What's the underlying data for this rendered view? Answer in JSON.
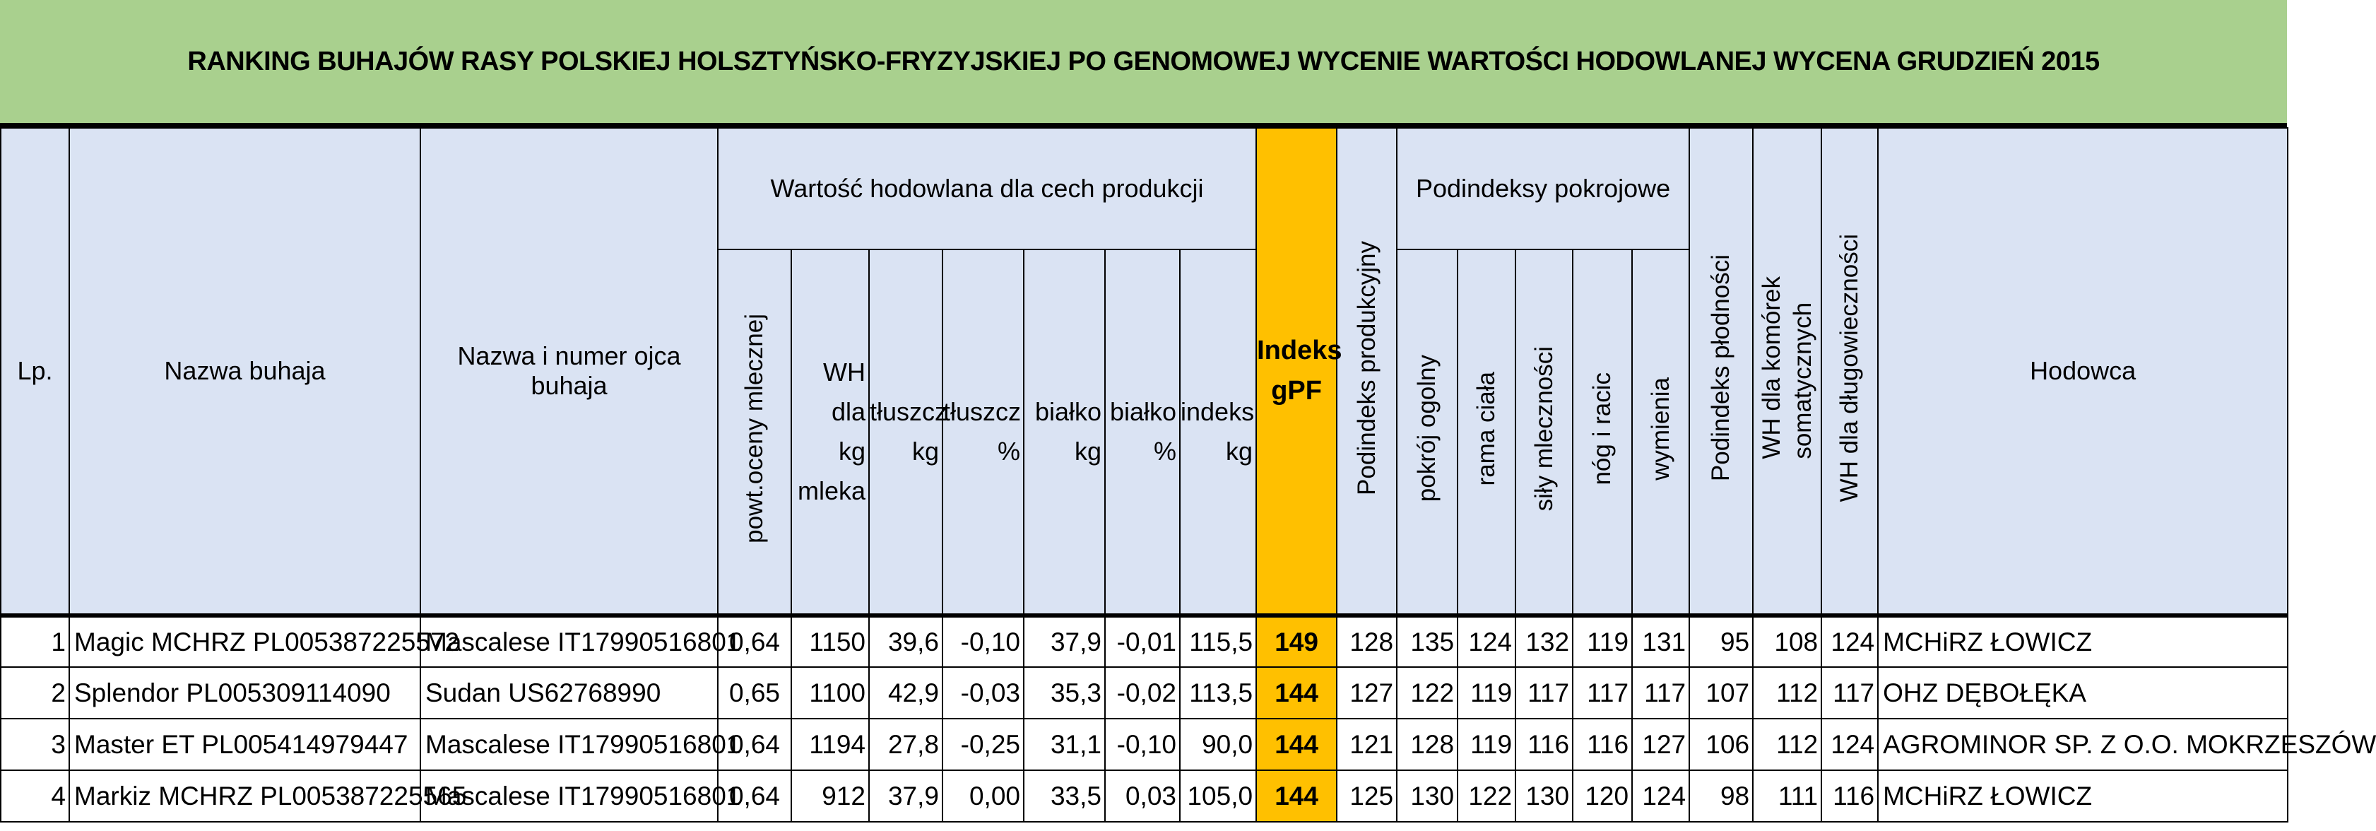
{
  "title": "RANKING BUHAJÓW RASY POLSKIEJ HOLSZTYŃSKO-FRYZYJSKIEJ PO GENOMOWEJ WYCENIE WARTOŚCI HODOWLANEJ  WYCENA GRUDZIEŃ 2015",
  "headers": {
    "lp": "Lp.",
    "nazwa": "Nazwa buhaja",
    "ojciec": "Nazwa i numer ojca buhaja",
    "group_production": "Wartość hodowlana dla cech produkcji",
    "powt": "powt.oceny mlecznej",
    "wh_mleko": [
      "WH dla",
      "kg",
      "mleka"
    ],
    "tluszcz_kg": [
      "tłuszcz",
      "kg"
    ],
    "tluszcz_pct": [
      "tłuszcz",
      "%"
    ],
    "bialko_kg": [
      "białko",
      "kg"
    ],
    "bialko_pct": [
      "białko",
      "%"
    ],
    "indeks_kg": [
      "indeks",
      "kg"
    ],
    "gpf": [
      "Indeks",
      "gPF"
    ],
    "podindeks_produkcyjny": "Podindeks produkcyjny",
    "group_pokrojowe": "Podindeksy pokrojowe",
    "pokroj": "pokrój ogolny",
    "rama": "rama ciała",
    "sily": "siły mleczności",
    "nog": "nóg i racic",
    "wymienia": "wymienia",
    "plodnosci": "Podindeks płodności",
    "komorek": [
      "WH dla komórek",
      "somatycznych"
    ],
    "dlugowiecznosci": "WH dla długowieczności",
    "hodowca": "Hodowca"
  },
  "rows": [
    {
      "lp": "1",
      "nazwa": "Magic MCHRZ PL005387225572",
      "ojciec": "Mascalese IT17990516801",
      "powt": "0,64",
      "mleko": "1150",
      "tl_kg": "39,6",
      "tl_pct": "-0,10",
      "bi_kg": "37,9",
      "bi_pct": "-0,01",
      "indeks_kg": "115,5",
      "gpf": "149",
      "prod": "128",
      "pokroj": "135",
      "rama": "124",
      "sily": "132",
      "nog": "119",
      "wym": "131",
      "plod": "95",
      "kom": "108",
      "dlug": "124",
      "hodowca": "MCHiRZ ŁOWICZ"
    },
    {
      "lp": "2",
      "nazwa": "Splendor PL005309114090",
      "ojciec": "Sudan US62768990",
      "powt": "0,65",
      "mleko": "1100",
      "tl_kg": "42,9",
      "tl_pct": "-0,03",
      "bi_kg": "35,3",
      "bi_pct": "-0,02",
      "indeks_kg": "113,5",
      "gpf": "144",
      "prod": "127",
      "pokroj": "122",
      "rama": "119",
      "sily": "117",
      "nog": "117",
      "wym": "117",
      "plod": "107",
      "kom": "112",
      "dlug": "117",
      "hodowca": "OHZ DĘBOŁĘKA"
    },
    {
      "lp": "3",
      "nazwa": "Master ET PL005414979447",
      "ojciec": "Mascalese IT17990516801",
      "powt": "0,64",
      "mleko": "1194",
      "tl_kg": "27,8",
      "tl_pct": "-0,25",
      "bi_kg": "31,1",
      "bi_pct": "-0,10",
      "indeks_kg": "90,0",
      "gpf": "144",
      "prod": "121",
      "pokroj": "128",
      "rama": "119",
      "sily": "116",
      "nog": "116",
      "wym": "127",
      "plod": "106",
      "kom": "112",
      "dlug": "124",
      "hodowca": "AGROMINOR SP. Z O.O. MOKRZESZÓW"
    },
    {
      "lp": "4",
      "nazwa": "Markiz MCHRZ PL005387225565",
      "ojciec": "Mascalese IT17990516801",
      "powt": "0,64",
      "mleko": "912",
      "tl_kg": "37,9",
      "tl_pct": "0,00",
      "bi_kg": "33,5",
      "bi_pct": "0,03",
      "indeks_kg": "105,0",
      "gpf": "144",
      "prod": "125",
      "pokroj": "130",
      "rama": "122",
      "sily": "130",
      "nog": "120",
      "wym": "124",
      "plod": "98",
      "kom": "111",
      "dlug": "116",
      "hodowca": "MCHiRZ ŁOWICZ"
    }
  ],
  "colors": {
    "title_bg": "#a9d08e",
    "header_bg": "#dae3f3",
    "gpf_bg": "#ffc000"
  }
}
